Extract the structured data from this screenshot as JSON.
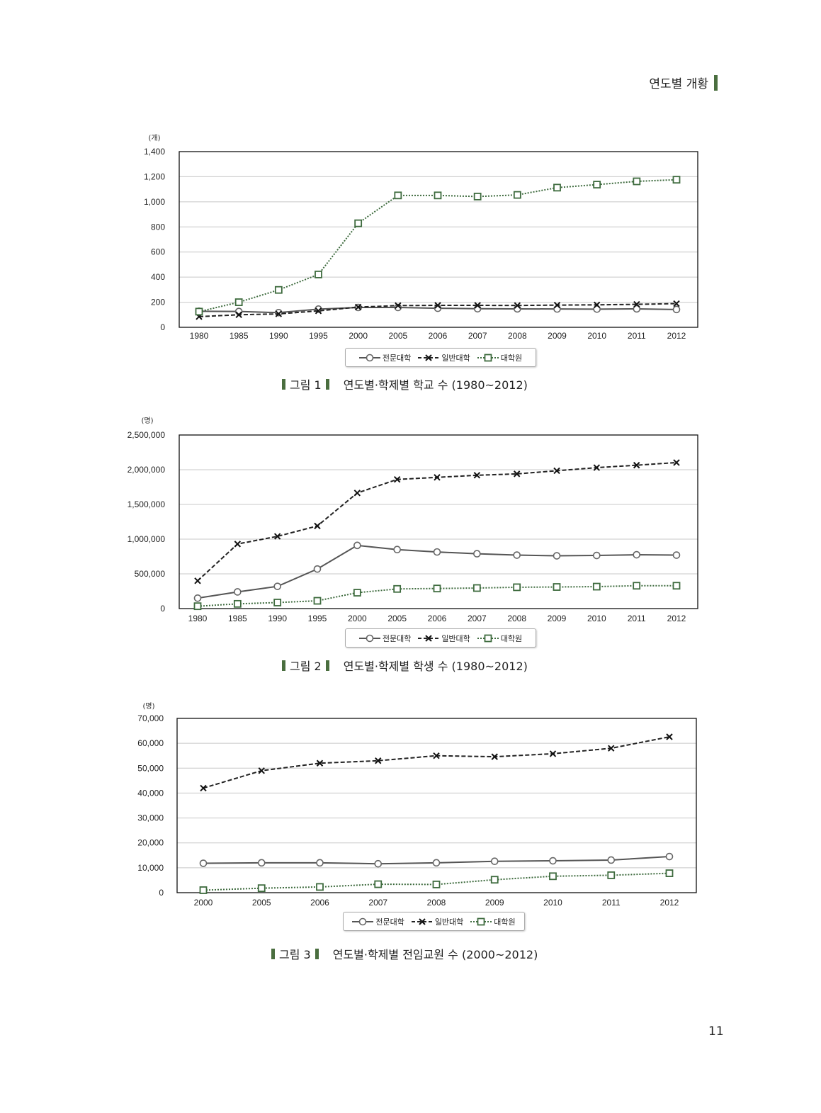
{
  "header": {
    "section_title": "연도별 개황"
  },
  "page_number": "11",
  "colors": {
    "accent": "#4a6e3f",
    "series_junior": "#555555",
    "series_univ": "#222222",
    "series_grad": "#3e6b3e"
  },
  "chart_data": [
    {
      "type": "line",
      "title": "연도별·학제별 학교 수 (1980~2012)",
      "figure_label": "그림 1",
      "unit": "(개)",
      "x": [
        "1980",
        "1985",
        "1990",
        "1995",
        "2000",
        "2005",
        "2006",
        "2007",
        "2008",
        "2009",
        "2010",
        "2011",
        "2012"
      ],
      "ylim": [
        0,
        1400
      ],
      "yticks": [
        0,
        200,
        400,
        600,
        800,
        1000,
        1200,
        1400
      ],
      "ytick_labels": [
        "0",
        "200",
        "400",
        "600",
        "800",
        "1,000",
        "1,200",
        "1,400"
      ],
      "grid": true,
      "legend_position": "bottom",
      "series": [
        {
          "name": "전문대학",
          "values": [
            128,
            126,
            117,
            145,
            158,
            158,
            152,
            148,
            147,
            146,
            145,
            147,
            142
          ]
        },
        {
          "name": "일반대학",
          "values": [
            85,
            100,
            107,
            131,
            161,
            173,
            175,
            175,
            174,
            177,
            179,
            183,
            189
          ]
        },
        {
          "name": "대학원",
          "values": [
            125,
            200,
            298,
            421,
            829,
            1051,
            1051,
            1042,
            1055,
            1113,
            1137,
            1163,
            1176
          ]
        }
      ]
    },
    {
      "type": "line",
      "title": "연도별·학제별 학생 수 (1980~2012)",
      "figure_label": "그림 2",
      "unit": "(명)",
      "x": [
        "1980",
        "1985",
        "1990",
        "1995",
        "2000",
        "2005",
        "2006",
        "2007",
        "2008",
        "2009",
        "2010",
        "2011",
        "2012"
      ],
      "ylim": [
        0,
        2500000
      ],
      "yticks": [
        0,
        500000,
        1000000,
        1500000,
        2000000,
        2500000
      ],
      "ytick_labels": [
        "0",
        "500,000",
        "1,000,000",
        "1,500,000",
        "2,000,000",
        "2,500,000"
      ],
      "grid": true,
      "legend_position": "bottom",
      "series": [
        {
          "name": "전문대학",
          "values": [
            150000,
            240000,
            320000,
            570000,
            910000,
            850000,
            815000,
            790000,
            770000,
            760000,
            765000,
            775000,
            770000
          ]
        },
        {
          "name": "일반대학",
          "values": [
            400000,
            930000,
            1040000,
            1190000,
            1665000,
            1860000,
            1890000,
            1920000,
            1940000,
            1985000,
            2030000,
            2065000,
            2103000
          ]
        },
        {
          "name": "대학원",
          "values": [
            34000,
            68000,
            87000,
            112000,
            229000,
            283000,
            289000,
            296000,
            307000,
            311000,
            316000,
            329000,
            329000
          ]
        }
      ]
    },
    {
      "type": "line",
      "title": "연도별·학제별 전임교원 수 (2000~2012)",
      "figure_label": "그림 3",
      "unit": "(명)",
      "x": [
        "2000",
        "2005",
        "2006",
        "2007",
        "2008",
        "2009",
        "2010",
        "2011",
        "2012"
      ],
      "ylim": [
        0,
        70000
      ],
      "yticks": [
        0,
        10000,
        20000,
        30000,
        40000,
        50000,
        60000,
        70000
      ],
      "ytick_labels": [
        "0",
        "10,000",
        "20,000",
        "30,000",
        "40,000",
        "50,000",
        "60,000",
        "70,000"
      ],
      "grid": true,
      "legend_position": "bottom",
      "series": [
        {
          "name": "전문대학",
          "values": [
            11800,
            12000,
            12000,
            11600,
            12000,
            12600,
            12800,
            13100,
            14500
          ]
        },
        {
          "name": "일반대학",
          "values": [
            42000,
            49000,
            52000,
            53000,
            55000,
            54600,
            55800,
            58000,
            62600
          ]
        },
        {
          "name": "대학원",
          "values": [
            1000,
            1800,
            2300,
            3400,
            3300,
            5200,
            6600,
            7000,
            7800
          ]
        }
      ]
    }
  ]
}
